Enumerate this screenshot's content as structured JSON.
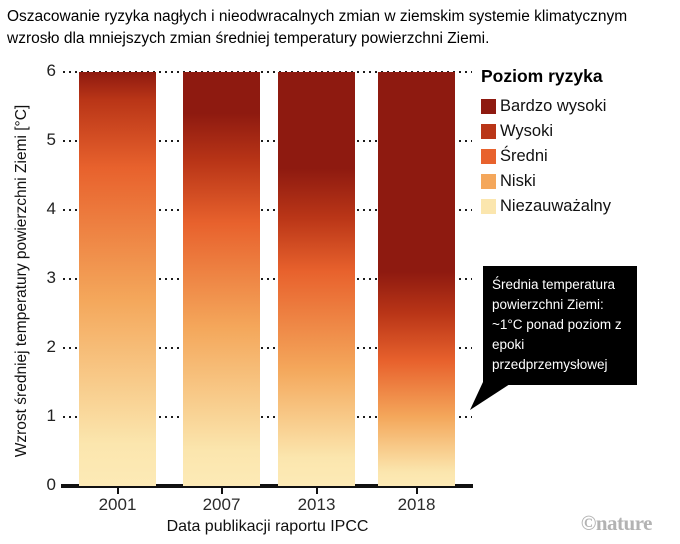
{
  "title": "Oszacowanie ryzyka nagłych i nieodwracalnych zmian w ziemskim systemie klimatycznym wzrosło dla mniejszych zmian średniej temperatury powierzchni Ziemi.",
  "y_axis": {
    "label": "Wzrost średniej temperatury powierzchni Ziemi [°C]",
    "ticks": [
      "6",
      "5",
      "4",
      "3",
      "2",
      "1",
      "0"
    ]
  },
  "x_axis": {
    "label": "Data publikacji raportu IPCC",
    "categories": [
      "2001",
      "2007",
      "2013",
      "2018"
    ]
  },
  "legend": {
    "title": "Poziom ryzyka",
    "items": [
      {
        "label": "Bardzo wysoki",
        "color": "#8e1a10"
      },
      {
        "label": "Wysoki",
        "color": "#b93517"
      },
      {
        "label": "Średni",
        "color": "#e8622d"
      },
      {
        "label": "Niski",
        "color": "#f4a75b"
      },
      {
        "label": "Niezauważalny",
        "color": "#fbe6ae"
      }
    ]
  },
  "annotation": {
    "text": "Średnia temperatura powierzchni Ziemi: ~1°C ponad poziom z epoki przedprzemysłowej"
  },
  "watermark": {
    "text": "©nature"
  },
  "colors": {
    "axis": "#111111",
    "gridline": "#1c1c1c",
    "bar_bottom": "#fdeab6",
    "callout_bg": "#000000",
    "callout_text": "#ffffff",
    "watermark": "#b3b3b3"
  },
  "chart_data": {
    "type": "bar",
    "title": "Oszacowanie ryzyka nagłych i nieodwracalnych zmian w ziemskim systemie klimatycznym wzrosło dla mniejszych zmian średniej temperatury powierzchni Ziemi.",
    "xlabel": "Data publikacji raportu IPCC",
    "ylabel": "Wzrost średniej temperatury powierzchni Ziemi [°C]",
    "ylim": [
      0,
      6
    ],
    "bar_value": 6,
    "grid": "dotted horizontal at 1,2,3,4,5,6",
    "legend_position": "top-right",
    "risk_levels": [
      "Bardzo wysoki",
      "Wysoki",
      "Średni",
      "Niski",
      "Niezauważalny"
    ],
    "categories": [
      "2001",
      "2007",
      "2013",
      "2018"
    ],
    "series": [
      {
        "name": "2001",
        "stops": [
          {
            "level": "Bardzo wysoki",
            "temp": 6.0
          },
          {
            "level": "Wysoki",
            "temp": 5.6
          },
          {
            "level": "Średni",
            "temp": 4.6
          },
          {
            "level": "Niski",
            "temp": 2.7
          },
          {
            "level": "Niezauważalny",
            "temp": 0.6
          }
        ]
      },
      {
        "name": "2007",
        "stops": [
          {
            "level": "Bardzo wysoki",
            "temp": 5.4
          },
          {
            "level": "Wysoki",
            "temp": 4.7
          },
          {
            "level": "Średni",
            "temp": 3.8
          },
          {
            "level": "Niski",
            "temp": 2.3
          },
          {
            "level": "Niezauważalny",
            "temp": 0.5
          }
        ]
      },
      {
        "name": "2013",
        "stops": [
          {
            "level": "Bardzo wysoki",
            "temp": 4.6
          },
          {
            "level": "Wysoki",
            "temp": 3.9
          },
          {
            "level": "Średni",
            "temp": 3.1
          },
          {
            "level": "Niski",
            "temp": 1.7
          },
          {
            "level": "Niezauważalny",
            "temp": 0.4
          }
        ]
      },
      {
        "name": "2018",
        "stops": [
          {
            "level": "Bardzo wysoki",
            "temp": 3.1
          },
          {
            "level": "Wysoki",
            "temp": 2.5
          },
          {
            "level": "Średni",
            "temp": 1.8
          },
          {
            "level": "Niski",
            "temp": 1.0
          },
          {
            "level": "Niezauważalny",
            "temp": 0.2
          }
        ]
      }
    ],
    "annotation": {
      "text": "Średnia temperatura powierzchni Ziemi: ~1°C ponad poziom z epoki przedprzemysłowej",
      "points_to": {
        "category": "2018",
        "temp": 1.0
      }
    }
  }
}
